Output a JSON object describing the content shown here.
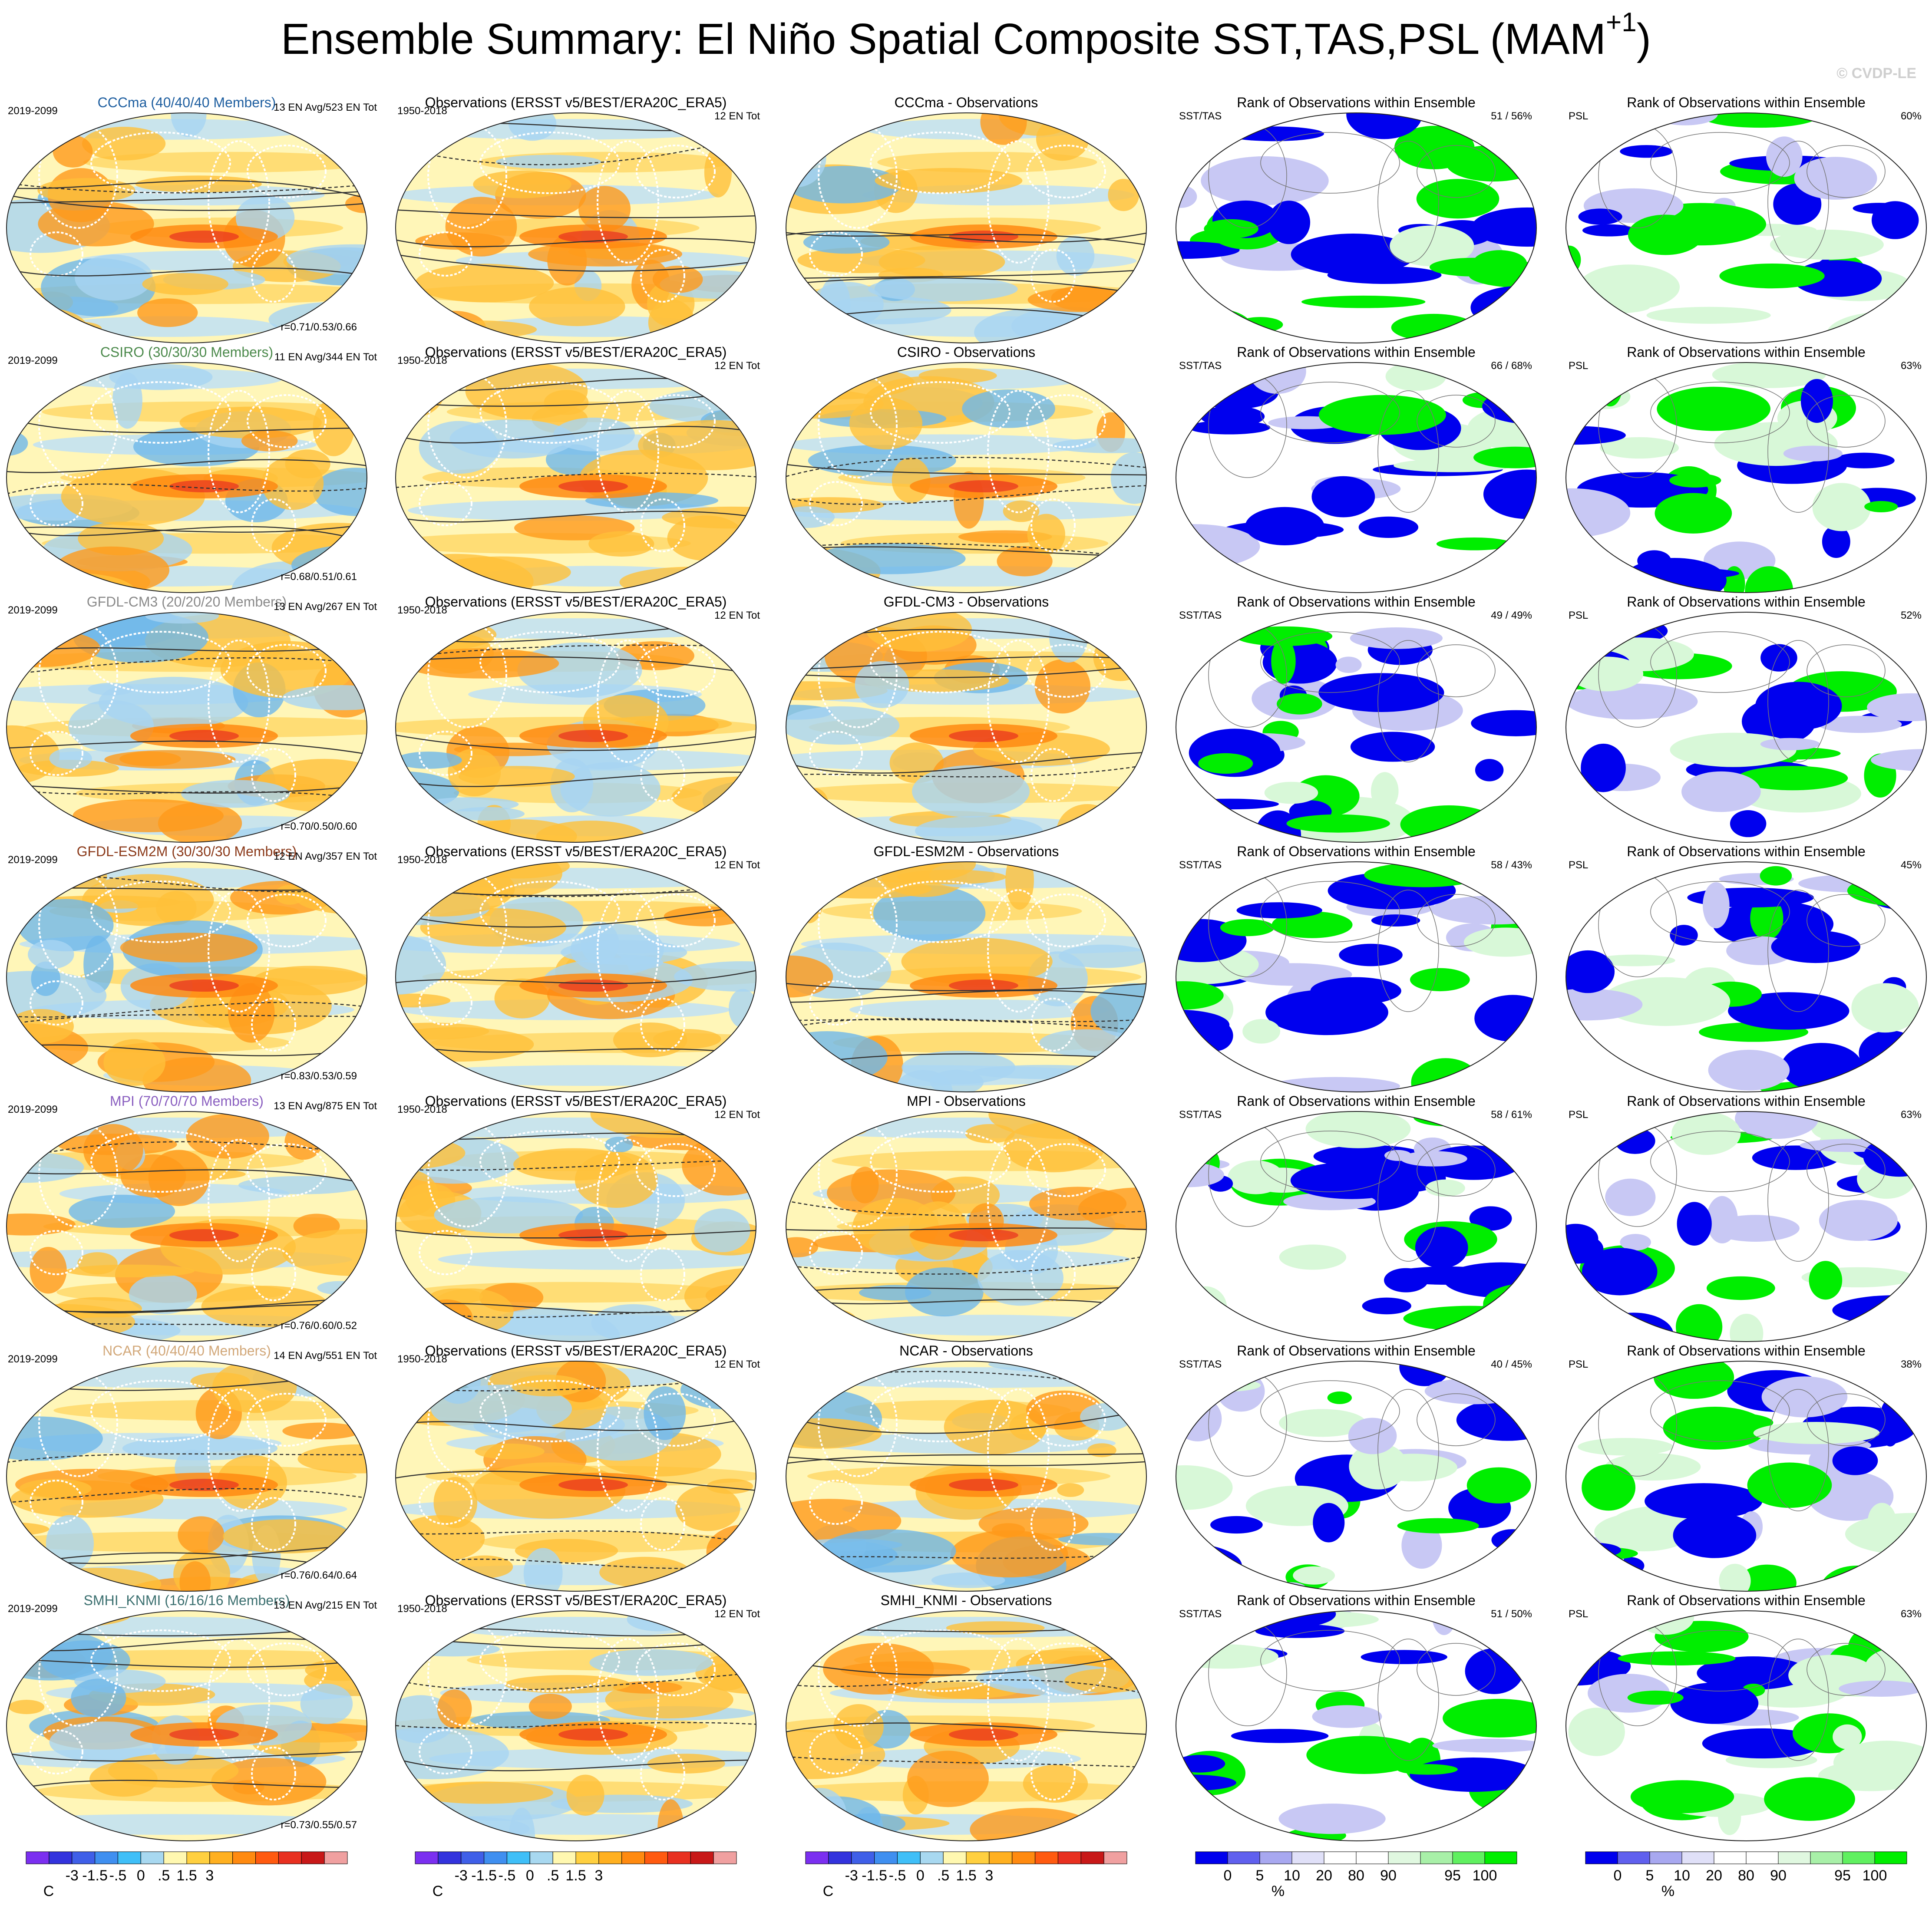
{
  "title": "Ensemble Summary: El Niño Spatial Composite SST,TAS,PSL (MAM",
  "title_superscript": "+1",
  "title_close": ")",
  "copyright": "© CVDP-LE",
  "rows": [
    {
      "model_title": "CCCma (40/40/40 Members)",
      "model_color": "#1f5fa0",
      "model_period": "2019-2099",
      "model_count": "13 EN Avg/523 EN Tot",
      "model_corr": "r=0.71/0.53/0.66",
      "obs_title": "Observations (ERSST v5/BEST/ERA20C_ERA5)",
      "obs_period": "1950-2018",
      "obs_count": "12 EN Tot",
      "diff_title": "CCCma - Observations",
      "rank_title": "Rank of Observations within Ensemble",
      "rank_sst_label": "SST/TAS",
      "rank_sst_pct": "51 /  56%",
      "rank_psl_title": "Rank of Observations within Ensemble",
      "rank_psl_label": "PSL",
      "rank_psl_pct": "60%"
    },
    {
      "model_title": "CSIRO (30/30/30 Members)",
      "model_color": "#4c8a4c",
      "model_period": "2019-2099",
      "model_count": "11 EN Avg/344 EN Tot",
      "model_corr": "r=0.68/0.51/0.61",
      "obs_title": "Observations (ERSST v5/BEST/ERA20C_ERA5)",
      "obs_period": "1950-2018",
      "obs_count": "12 EN Tot",
      "diff_title": "CSIRO - Observations",
      "rank_title": "Rank of Observations within Ensemble",
      "rank_sst_label": "SST/TAS",
      "rank_sst_pct": "66 /  68%",
      "rank_psl_title": "Rank of Observations within Ensemble",
      "rank_psl_label": "PSL",
      "rank_psl_pct": "63%"
    },
    {
      "model_title": "GFDL-CM3 (20/20/20 Members)",
      "model_color": "#8a8a8a",
      "model_period": "2019-2099",
      "model_count": "13 EN Avg/267 EN Tot",
      "model_corr": "r=0.70/0.50/0.60",
      "obs_title": "Observations (ERSST v5/BEST/ERA20C_ERA5)",
      "obs_period": "1950-2018",
      "obs_count": "12 EN Tot",
      "diff_title": "GFDL-CM3 - Observations",
      "rank_title": "Rank of Observations within Ensemble",
      "rank_sst_label": "SST/TAS",
      "rank_sst_pct": "49 /  49%",
      "rank_psl_title": "Rank of Observations within Ensemble",
      "rank_psl_label": "PSL",
      "rank_psl_pct": "52%"
    },
    {
      "model_title": "GFDL-ESM2M (30/30/30 Members)",
      "model_color": "#8b3a1a",
      "model_period": "2019-2099",
      "model_count": "12 EN Avg/357 EN Tot",
      "model_corr": "r=0.83/0.53/0.59",
      "obs_title": "Observations (ERSST v5/BEST/ERA20C_ERA5)",
      "obs_period": "1950-2018",
      "obs_count": "12 EN Tot",
      "diff_title": "GFDL-ESM2M - Observations",
      "rank_title": "Rank of Observations within Ensemble",
      "rank_sst_label": "SST/TAS",
      "rank_sst_pct": "58 /  43%",
      "rank_psl_title": "Rank of Observations within Ensemble",
      "rank_psl_label": "PSL",
      "rank_psl_pct": "45%"
    },
    {
      "model_title": "MPI (70/70/70 Members)",
      "model_color": "#8a5fc0",
      "model_period": "2019-2099",
      "model_count": "13 EN Avg/875 EN Tot",
      "model_corr": "r=0.76/0.60/0.52",
      "obs_title": "Observations (ERSST v5/BEST/ERA20C_ERA5)",
      "obs_period": "1950-2018",
      "obs_count": "12 EN Tot",
      "diff_title": "MPI - Observations",
      "rank_title": "Rank of Observations within Ensemble",
      "rank_sst_label": "SST/TAS",
      "rank_sst_pct": "58 /  61%",
      "rank_psl_title": "Rank of Observations within Ensemble",
      "rank_psl_label": "PSL",
      "rank_psl_pct": "63%"
    },
    {
      "model_title": "NCAR (40/40/40 Members)",
      "model_color": "#d2a87a",
      "model_period": "2019-2099",
      "model_count": "14 EN Avg/551 EN Tot",
      "model_corr": "r=0.76/0.64/0.64",
      "obs_title": "Observations (ERSST v5/BEST/ERA20C_ERA5)",
      "obs_period": "1950-2018",
      "obs_count": "12 EN Tot",
      "diff_title": "NCAR - Observations",
      "rank_title": "Rank of Observations within Ensemble",
      "rank_sst_label": "SST/TAS",
      "rank_sst_pct": "40 /  45%",
      "rank_psl_title": "Rank of Observations within Ensemble",
      "rank_psl_label": "PSL",
      "rank_psl_pct": "38%"
    },
    {
      "model_title": "SMHI_KNMI (16/16/16 Members)",
      "model_color": "#3c7070",
      "model_period": "2019-2099",
      "model_count": "13 EN Avg/215 EN Tot",
      "model_corr": "r=0.73/0.55/0.57",
      "obs_title": "Observations (ERSST v5/BEST/ERA20C_ERA5)",
      "obs_period": "1950-2018",
      "obs_count": "12 EN Tot",
      "diff_title": "SMHI_KNMI - Observations",
      "rank_title": "Rank of Observations within Ensemble",
      "rank_sst_label": "SST/TAS",
      "rank_sst_pct": "51 /  50%",
      "rank_psl_title": "Rank of Observations within Ensemble",
      "rank_psl_label": "PSL",
      "rank_psl_pct": "63%"
    }
  ],
  "temp_colorbar": {
    "colors": [
      "#7b2ff0",
      "#3333dd",
      "#3f5fe8",
      "#3f8ff0",
      "#3fbff8",
      "#a8d8f0",
      "#fff8b0",
      "#ffd040",
      "#ffb020",
      "#ff8a10",
      "#ff5a10",
      "#e83020",
      "#c81818",
      "#f0a0a0"
    ],
    "labels": [
      "-3",
      "-1.5",
      "-.5",
      "0",
      ".5",
      "1.5",
      "3"
    ],
    "unit": "C"
  },
  "rank_colorbar": {
    "colors": [
      "#0000ee",
      "#6060ee",
      "#a8a8f0",
      "#e0e0f8",
      "#ffffff",
      "#ffffff",
      "#e0f8e0",
      "#a8f0a8",
      "#60f060",
      "#00ee00"
    ],
    "labels": [
      "0",
      "5",
      "10",
      "20",
      "80",
      "90",
      "95",
      "100"
    ],
    "unit": "%"
  }
}
